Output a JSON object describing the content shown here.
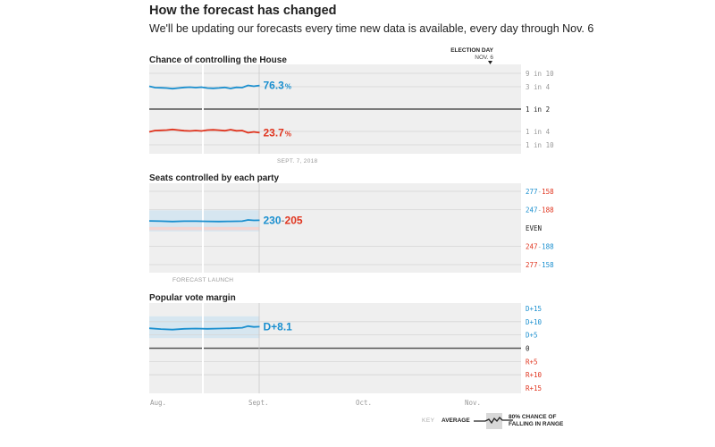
{
  "header": {
    "title": "How the forecast has changed",
    "subtitle": "We'll be updating our forecasts every time new data is available, every day through Nov. 6"
  },
  "election_day": {
    "label": "ELECTION DAY",
    "date": "NOV. 6"
  },
  "annotations": {
    "current_date": "SEPT. 7, 2018",
    "forecast_launch": "FORECAST LAUNCH"
  },
  "colors": {
    "dem": "#1a8fcf",
    "rep": "#e0341e",
    "panel": "#efefef",
    "grid": "#d5d5d5",
    "mid": "#555555"
  },
  "key": {
    "label": "KEY",
    "average": "AVERAGE",
    "range_line1": "80% CHANCE OF",
    "range_line2": "FALLING IN RANGE"
  },
  "chart_data": [
    {
      "type": "line",
      "title": "Chance of controlling the House",
      "x_ticks": [
        "Aug.",
        "Sept.",
        "Oct.",
        "Nov."
      ],
      "y_ticks": [
        {
          "label": "9 in 10",
          "value": 90
        },
        {
          "label": "3 in 4",
          "value": 75
        },
        {
          "label": "1 in 2",
          "value": 50
        },
        {
          "label": "1 in 4",
          "value": 25
        },
        {
          "label": "1 in 10",
          "value": 10
        }
      ],
      "ylim": [
        0,
        100
      ],
      "x_days": [
        0,
        2,
        4,
        6,
        8,
        10,
        12,
        14,
        16,
        18,
        20,
        22,
        24,
        26,
        28,
        30,
        32,
        34,
        35,
        36,
        37,
        38
      ],
      "series": [
        {
          "name": "Democrats",
          "color": "#1a8fcf",
          "final_label": "76.3",
          "values": [
            75.5,
            74.0,
            73.8,
            73.5,
            72.8,
            73.5,
            74.2,
            74.5,
            74.0,
            74.5,
            73.5,
            73.2,
            73.6,
            74.2,
            73.0,
            74.3,
            74.0,
            76.5,
            76.0,
            75.5,
            76.0,
            76.3
          ]
        },
        {
          "name": "Republicans",
          "color": "#e0341e",
          "final_label": "23.7",
          "values": [
            24.5,
            26.0,
            26.2,
            26.5,
            27.2,
            26.5,
            25.8,
            25.5,
            26.0,
            25.5,
            26.5,
            26.8,
            26.4,
            25.8,
            27.0,
            25.7,
            26.0,
            23.5,
            24.0,
            24.5,
            24.0,
            23.7
          ]
        }
      ],
      "percent_suffix": "%"
    },
    {
      "type": "area",
      "title": "Seats controlled by each party",
      "x_ticks": [
        "Aug.",
        "Sept.",
        "Oct.",
        "Nov."
      ],
      "y_ticks": [
        {
          "dem": "277",
          "rep": "158",
          "value": 277,
          "lead": "dem"
        },
        {
          "dem": "247",
          "rep": "188",
          "value": 247,
          "lead": "dem"
        },
        {
          "label": "EVEN",
          "value": 217.5
        },
        {
          "dem": "188",
          "rep": "247",
          "value": 188,
          "lead": "rep"
        },
        {
          "dem": "158",
          "rep": "277",
          "value": 158,
          "lead": "rep"
        }
      ],
      "ylim": [
        145,
        290
      ],
      "x_days": [
        0,
        4,
        8,
        12,
        16,
        20,
        24,
        28,
        32,
        34,
        36,
        38
      ],
      "series": [
        {
          "name": "Democratic seats average",
          "color": "#1a8fcf",
          "values": [
            229,
            228.5,
            228,
            228.5,
            228.5,
            228.3,
            228,
            228.2,
            228.5,
            230.5,
            229.8,
            230
          ]
        },
        {
          "name": "Democratic 80% range",
          "color": "#cfe3f0",
          "low": 212,
          "high": 246
        },
        {
          "name": "Republican 80% range",
          "color": "#f6d4cf",
          "low": 214,
          "high": 219
        }
      ],
      "final_label": {
        "dem": "230",
        "sep": "-",
        "rep": "205"
      }
    },
    {
      "type": "area",
      "title": "Popular vote margin",
      "x_ticks": [
        "Aug.",
        "Sept.",
        "Oct.",
        "Nov."
      ],
      "y_ticks": [
        {
          "label": "D+15",
          "value": 15,
          "party": "dem"
        },
        {
          "label": "D+10",
          "value": 10,
          "party": "dem"
        },
        {
          "label": "D+5",
          "value": 5,
          "party": "dem"
        },
        {
          "label": "0",
          "value": 0,
          "party": "even"
        },
        {
          "label": "R+5",
          "value": -5,
          "party": "rep"
        },
        {
          "label": "R+10",
          "value": -10,
          "party": "rep"
        },
        {
          "label": "R+15",
          "value": -15,
          "party": "rep"
        }
      ],
      "ylim": [
        -17,
        17
      ],
      "x_days": [
        0,
        4,
        8,
        12,
        16,
        20,
        24,
        28,
        32,
        34,
        36,
        38
      ],
      "series": [
        {
          "name": "Democratic margin average",
          "color": "#1a8fcf",
          "values": [
            7.5,
            7.2,
            7.0,
            7.3,
            7.4,
            7.3,
            7.4,
            7.5,
            7.7,
            8.3,
            8.0,
            8.1
          ]
        },
        {
          "name": "80% range",
          "color": "#cfe3f0",
          "low": 3.8,
          "high": 12.0
        }
      ],
      "final_label": "D+8.1"
    }
  ]
}
